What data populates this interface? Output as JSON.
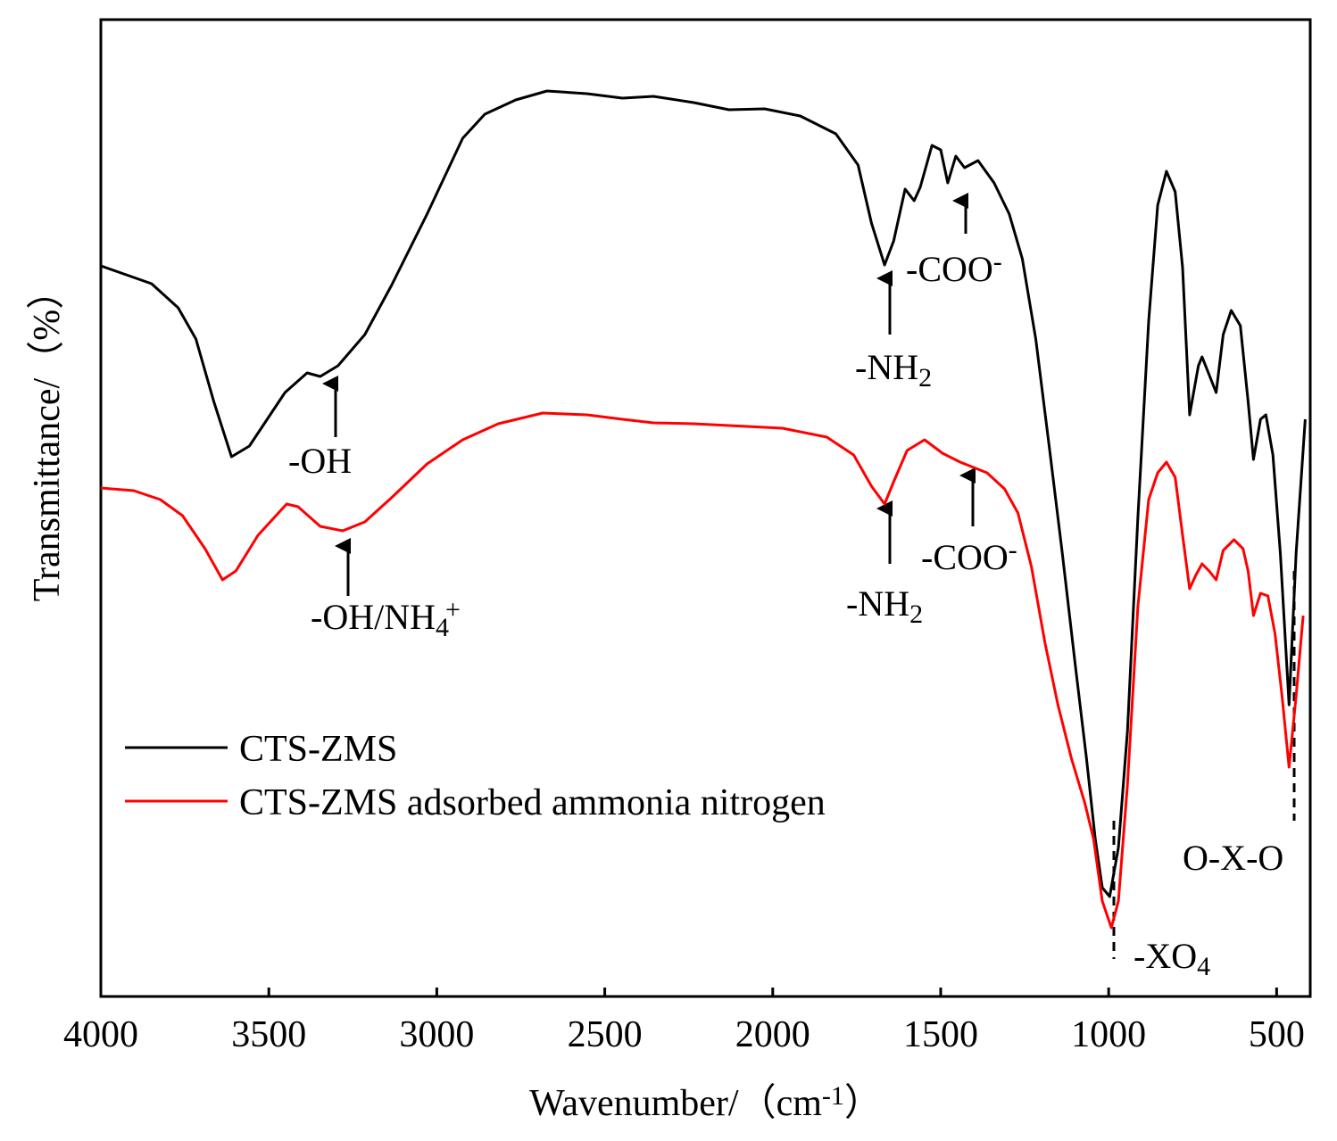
{
  "chart_data": {
    "type": "line",
    "x_label": {
      "text": "Wavenumber/（cm",
      "sup": "-1",
      "after": "）"
    },
    "y_label": "Transmittance/（%）",
    "xlim": [
      4000,
      400
    ],
    "ylim": [
      0,
      1095
    ],
    "xticks": [
      4000,
      3500,
      3000,
      2500,
      2000,
      1500,
      1000,
      500
    ],
    "series": [
      {
        "name": "CTS-ZMS",
        "color": "#000000",
        "x": [
          4000,
          3849,
          3770,
          3717,
          3664,
          3611,
          3558,
          3452,
          3386,
          3347,
          3294,
          3214,
          3135,
          3029,
          2923,
          2857,
          2765,
          2672,
          2553,
          2447,
          2355,
          2235,
          2130,
          2024,
          1918,
          1812,
          1746,
          1706,
          1667,
          1640,
          1606,
          1579,
          1561,
          1526,
          1500,
          1479,
          1455,
          1429,
          1389,
          1341,
          1296,
          1257,
          1217,
          1177,
          1138,
          1098,
          1066,
          1040,
          1019,
          997,
          971,
          944,
          913,
          881,
          854,
          828,
          802,
          780,
          759,
          733,
          722,
          701,
          680,
          659,
          635,
          608,
          585,
          569,
          548,
          532,
          511,
          489,
          463,
          442,
          415
        ],
        "values": [
          819,
          799,
          772,
          737,
          667,
          605,
          617,
          677,
          699,
          695,
          707,
          742,
          797,
          877,
          962,
          989,
          1005,
          1015,
          1012,
          1007,
          1009,
          1002,
          994,
          995,
          987,
          967,
          932,
          867,
          820,
          847,
          905,
          892,
          907,
          954,
          949,
          912,
          942,
          929,
          937,
          912,
          877,
          827,
          737,
          617,
          497,
          367,
          267,
          177,
          122,
          112,
          167,
          297,
          537,
          757,
          887,
          925,
          902,
          817,
          652,
          707,
          717,
          697,
          677,
          742,
          769,
          752,
          667,
          602,
          647,
          652,
          607,
          497,
          327,
          497,
          647
        ]
      },
      {
        "name": "CTS-ZMS adsorbed ammonia nitrogen",
        "color": "#ff0000",
        "x": [
          4000,
          3902,
          3823,
          3757,
          3690,
          3638,
          3598,
          3532,
          3447,
          3413,
          3347,
          3280,
          3214,
          3135,
          3029,
          2923,
          2817,
          2685,
          2553,
          2447,
          2355,
          2235,
          2130,
          1971,
          1839,
          1759,
          1706,
          1667,
          1640,
          1600,
          1548,
          1495,
          1442,
          1362,
          1310,
          1270,
          1230,
          1190,
          1151,
          1111,
          1071,
          1045,
          1019,
          992,
          971,
          944,
          913,
          881,
          854,
          828,
          802,
          780,
          759,
          741,
          722,
          701,
          680,
          659,
          627,
          600,
          585,
          569,
          548,
          526,
          505,
          484,
          463,
          442,
          421
        ],
        "values": [
          570,
          567,
          557,
          539,
          502,
          467,
          477,
          517,
          552,
          549,
          527,
          522,
          532,
          559,
          597,
          624,
          642,
          654,
          652,
          647,
          643,
          642,
          640,
          637,
          627,
          607,
          572,
          552,
          577,
          612,
          624,
          609,
          599,
          587,
          569,
          542,
          482,
          397,
          327,
          267,
          217,
          177,
          107,
          77,
          107,
          237,
          437,
          557,
          587,
          599,
          582,
          517,
          457,
          472,
          485,
          477,
          467,
          500,
          512,
          502,
          477,
          427,
          452,
          449,
          407,
          337,
          257,
          337,
          427
        ]
      }
    ],
    "annotations": [
      {
        "text": "-OH"
      },
      {
        "text": "-NH",
        "sub": "2"
      },
      {
        "text": "-COO",
        "sup": "-"
      },
      {
        "text": "-OH/NH",
        "sub": "4",
        "sup": "+"
      },
      {
        "text": "-NH",
        "sub": "2"
      },
      {
        "text": "-COO",
        "sup": "-"
      },
      {
        "text": "-XO",
        "sub": "4"
      },
      {
        "text": "O-X-O"
      }
    ]
  }
}
